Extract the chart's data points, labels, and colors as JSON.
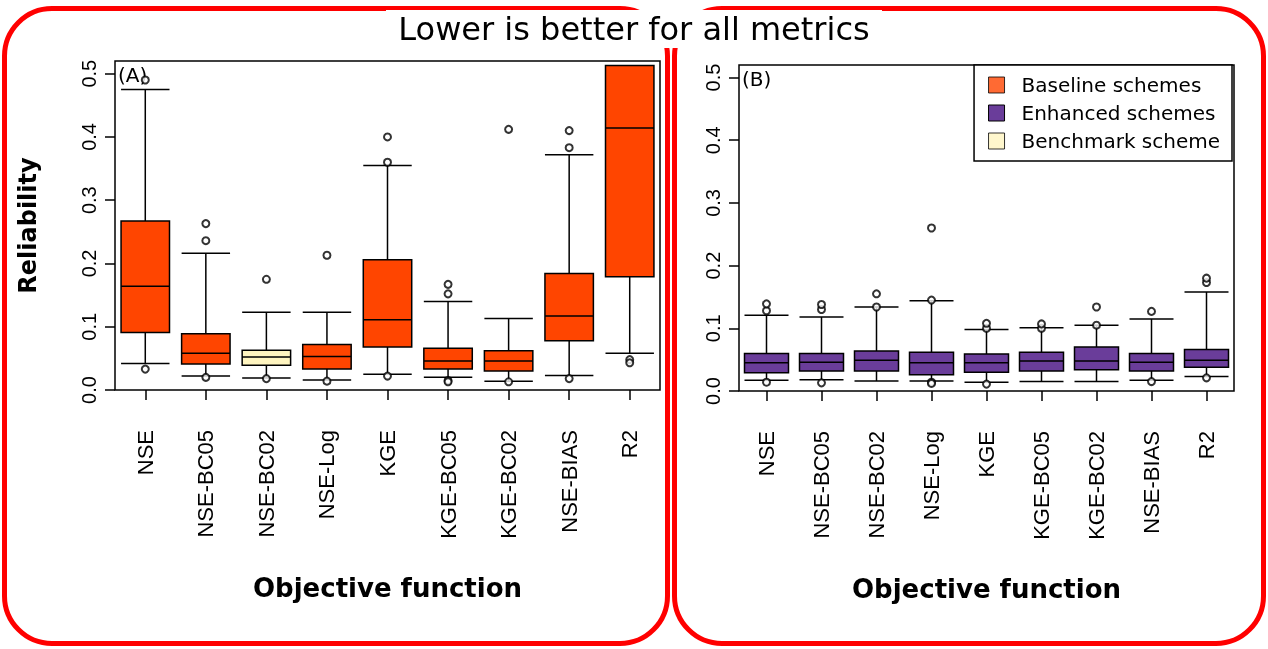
{
  "chart_data": [
    {
      "type": "box",
      "title": "Lower is better for all metrics",
      "xlabel": "Objective function",
      "ylabel": "Reliability",
      "annotations": [
        "(A)"
      ],
      "categories": [
        "NSE",
        "NSE-BC05",
        "NSE-BC02",
        "NSE-Log",
        "KGE",
        "KGE-BC05",
        "KGE-BC02",
        "NSE-BIAS",
        "R2"
      ],
      "colors": [
        "#ff4500",
        "#ff4500",
        "#fff5c0",
        "#ff4500",
        "#ff4500",
        "#ff4500",
        "#ff4500",
        "#ff4500",
        "#ff4500"
      ],
      "boxes": [
        {
          "low": 0.042,
          "q1": 0.091,
          "median": 0.164,
          "q3": 0.267,
          "high": 0.475,
          "outliers": [
            0.49,
            0.033
          ]
        },
        {
          "low": 0.022,
          "q1": 0.041,
          "median": 0.058,
          "q3": 0.089,
          "high": 0.216,
          "outliers": [
            0.236,
            0.263,
            0.02
          ]
        },
        {
          "low": 0.019,
          "q1": 0.039,
          "median": 0.052,
          "q3": 0.063,
          "high": 0.123,
          "outliers": [
            0.175,
            0.018
          ]
        },
        {
          "low": 0.016,
          "q1": 0.033,
          "median": 0.053,
          "q3": 0.072,
          "high": 0.123,
          "outliers": [
            0.213,
            0.014
          ]
        },
        {
          "low": 0.025,
          "q1": 0.068,
          "median": 0.111,
          "q3": 0.206,
          "high": 0.355,
          "outliers": [
            0.36,
            0.4,
            0.022
          ]
        },
        {
          "low": 0.02,
          "q1": 0.033,
          "median": 0.046,
          "q3": 0.066,
          "high": 0.14,
          "outliers": [
            0.152,
            0.167,
            0.015,
            0.013
          ]
        },
        {
          "low": 0.014,
          "q1": 0.03,
          "median": 0.046,
          "q3": 0.062,
          "high": 0.113,
          "outliers": [
            0.412,
            0.013
          ]
        },
        {
          "low": 0.023,
          "q1": 0.078,
          "median": 0.117,
          "q3": 0.184,
          "high": 0.372,
          "outliers": [
            0.383,
            0.41,
            0.018
          ]
        },
        {
          "low": 0.058,
          "q1": 0.179,
          "median": 0.414,
          "q3": 0.513,
          "high": 0.513,
          "outliers": [
            0.048,
            0.043
          ]
        }
      ],
      "ylim": [
        0,
        0.52
      ],
      "yticks": [
        {
          "value": 0,
          "label": "0.0"
        },
        0.1,
        0.2,
        0.3,
        0.4,
        0.5
      ],
      "grid": false,
      "legend": false
    },
    {
      "type": "box",
      "xlabel": "Objective function",
      "annotations": [
        "(B)"
      ],
      "categories": [
        "NSE",
        "NSE-BC05",
        "NSE-BC02",
        "NSE-Log",
        "KGE",
        "KGE-BC05",
        "KGE-BC02",
        "NSE-BIAS",
        "R2"
      ],
      "series": [
        {
          "name": "Baseline schemes",
          "color": "#ff4500",
          "boxes": [
            null,
            null,
            null,
            null,
            null,
            null,
            null,
            null,
            null
          ]
        },
        {
          "name": "Enhanced schemes",
          "color": "#6a3d9a",
          "boxes": [
            {
              "low": 0.017,
              "q1": 0.029,
              "median": 0.045,
              "q3": 0.06,
              "high": 0.121,
              "outliers": [
                0.128,
                0.139,
                0.014
              ]
            },
            {
              "low": 0.018,
              "q1": 0.032,
              "median": 0.046,
              "q3": 0.06,
              "high": 0.118,
              "outliers": [
                0.13,
                0.138,
                0.013
              ]
            },
            {
              "low": 0.016,
              "q1": 0.032,
              "median": 0.049,
              "q3": 0.064,
              "high": 0.134,
              "outliers": [
                0.134,
                0.155
              ]
            },
            {
              "low": 0.016,
              "q1": 0.026,
              "median": 0.045,
              "q3": 0.062,
              "high": 0.144,
              "outliers": [
                0.145,
                0.26,
                0.014,
                0.012
              ]
            },
            {
              "low": 0.014,
              "q1": 0.03,
              "median": 0.045,
              "q3": 0.059,
              "high": 0.098,
              "outliers": [
                0.1,
                0.108,
                0.011
              ]
            },
            {
              "low": 0.015,
              "q1": 0.032,
              "median": 0.048,
              "q3": 0.062,
              "high": 0.101,
              "outliers": [
                0.1,
                0.107
              ]
            },
            {
              "low": 0.015,
              "q1": 0.034,
              "median": 0.048,
              "q3": 0.07,
              "high": 0.105,
              "outliers": [
                0.105,
                0.134
              ]
            },
            {
              "low": 0.017,
              "q1": 0.032,
              "median": 0.046,
              "q3": 0.06,
              "high": 0.115,
              "outliers": [
                0.127,
                0.015
              ]
            },
            {
              "low": 0.023,
              "q1": 0.038,
              "median": 0.049,
              "q3": 0.066,
              "high": 0.158,
              "outliers": [
                0.173,
                0.18,
                0.021
              ]
            }
          ]
        },
        {
          "name": "Benchmark scheme",
          "color": "#fff5c0",
          "boxes": [
            null,
            null,
            null,
            null,
            null,
            null,
            null,
            null,
            null
          ]
        }
      ],
      "ylim": [
        0,
        0.52
      ],
      "yticks": [
        {
          "value": 0,
          "label": "0.0"
        },
        0.1,
        0.2,
        0.3,
        0.4,
        0.5
      ],
      "grid": false,
      "legend": "top right"
    }
  ]
}
